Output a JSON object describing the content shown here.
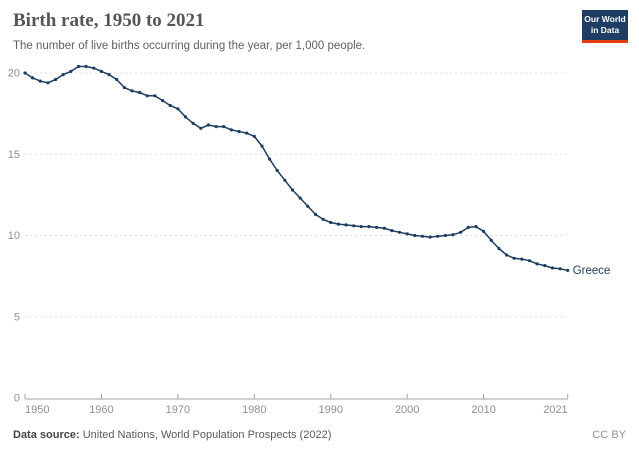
{
  "header": {
    "title": "Birth rate, 1950 to 2021",
    "subtitle": "The number of live births occurring during the year, per 1,000 people.",
    "logo_line1": "Our World",
    "logo_line2": "in Data"
  },
  "footer": {
    "source_label": "Data source:",
    "source_text": "United Nations, World Population Prospects (2022)",
    "license": "CC BY"
  },
  "colors": {
    "line": "#1d3d63",
    "entity_label": "#1d3d63",
    "grid": "#dddddd",
    "axis": "#a3a3a3",
    "tick_text": "#8f8f8f",
    "logo_bg": "#1d3d63",
    "logo_red": "#e63e13"
  },
  "chart_data": {
    "type": "line",
    "title": "Birth rate, 1950 to 2021",
    "entity": "Greece",
    "unit": "live births per 1,000 people",
    "legend_position": "end-of-line label",
    "grid": "horizontal dashed",
    "ylim": [
      0,
      20
    ],
    "yticks": [
      0,
      5,
      10,
      15,
      20
    ],
    "xticks": [
      1950,
      1960,
      1970,
      1980,
      1990,
      2000,
      2010,
      2021
    ],
    "years": [
      1950,
      1951,
      1952,
      1953,
      1954,
      1955,
      1956,
      1957,
      1958,
      1959,
      1960,
      1961,
      1962,
      1963,
      1964,
      1965,
      1966,
      1967,
      1968,
      1969,
      1970,
      1971,
      1972,
      1973,
      1974,
      1975,
      1976,
      1977,
      1978,
      1979,
      1980,
      1981,
      1982,
      1983,
      1984,
      1985,
      1986,
      1987,
      1988,
      1989,
      1990,
      1991,
      1992,
      1993,
      1994,
      1995,
      1996,
      1997,
      1998,
      1999,
      2000,
      2001,
      2002,
      2003,
      2004,
      2005,
      2006,
      2007,
      2008,
      2009,
      2010,
      2011,
      2012,
      2013,
      2014,
      2015,
      2016,
      2017,
      2018,
      2019,
      2020,
      2021
    ],
    "values": [
      20.0,
      19.7,
      19.5,
      19.4,
      19.6,
      19.9,
      20.1,
      20.4,
      20.4,
      20.3,
      20.1,
      19.9,
      19.6,
      19.1,
      18.9,
      18.8,
      18.6,
      18.6,
      18.3,
      18.0,
      17.8,
      17.3,
      16.9,
      16.6,
      16.8,
      16.7,
      16.7,
      16.5,
      16.4,
      16.3,
      16.1,
      15.5,
      14.7,
      14.0,
      13.4,
      12.8,
      12.3,
      11.8,
      11.3,
      11.0,
      10.8,
      10.7,
      10.65,
      10.6,
      10.55,
      10.55,
      10.5,
      10.45,
      10.3,
      10.2,
      10.1,
      10.0,
      9.95,
      9.9,
      9.95,
      10.0,
      10.05,
      10.2,
      10.5,
      10.55,
      10.25,
      9.7,
      9.2,
      8.8,
      8.6,
      8.55,
      8.45,
      8.25,
      8.15,
      8.0,
      7.95,
      7.85
    ]
  }
}
